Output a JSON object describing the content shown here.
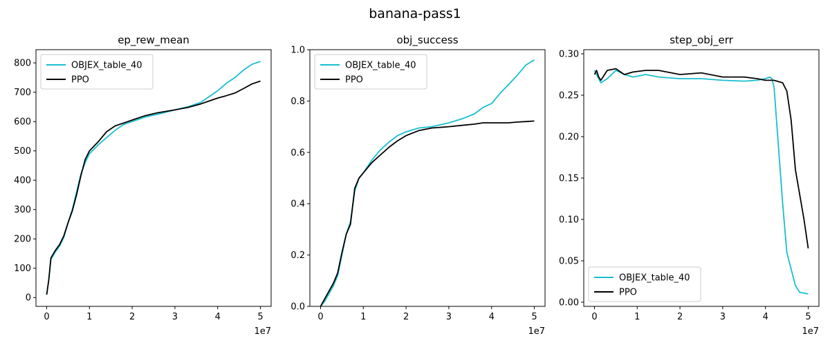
{
  "figure_title": "banana-pass1",
  "colors": {
    "objex": "#17becf",
    "ppo": "#000000"
  },
  "chart_data": [
    {
      "type": "line",
      "title": "ep_rew_mean",
      "xlabel": "",
      "ylabel": "",
      "x_offset_label": "1e7",
      "xlim": [
        -0.25,
        5.25
      ],
      "ylim": [
        -30,
        845
      ],
      "xticks": [
        0,
        1,
        2,
        3,
        4,
        5
      ],
      "xtick_labels": [
        "0",
        "1",
        "2",
        "3",
        "4",
        "5"
      ],
      "yticks": [
        0,
        100,
        200,
        300,
        400,
        500,
        600,
        700,
        800
      ],
      "ytick_labels": [
        "0",
        "100",
        "200",
        "300",
        "400",
        "500",
        "600",
        "700",
        "800"
      ],
      "legend": "upper-left",
      "grid": false,
      "series": [
        {
          "name": "OBJEX_table_40",
          "color": "#17becf",
          "x": [
            0,
            0.05,
            0.1,
            0.2,
            0.3,
            0.4,
            0.5,
            0.6,
            0.7,
            0.8,
            0.9,
            1.0,
            1.2,
            1.4,
            1.6,
            1.8,
            2.0,
            2.3,
            2.6,
            3.0,
            3.3,
            3.6,
            3.8,
            4.0,
            4.2,
            4.4,
            4.6,
            4.8,
            5.0
          ],
          "y": [
            10,
            60,
            130,
            155,
            175,
            205,
            255,
            300,
            360,
            420,
            460,
            490,
            520,
            545,
            570,
            590,
            600,
            615,
            625,
            640,
            650,
            665,
            685,
            705,
            730,
            750,
            775,
            795,
            805
          ]
        },
        {
          "name": "PPO",
          "color": "#000000",
          "x": [
            0,
            0.05,
            0.1,
            0.2,
            0.3,
            0.4,
            0.5,
            0.6,
            0.7,
            0.8,
            0.9,
            1.0,
            1.2,
            1.4,
            1.6,
            1.8,
            2.0,
            2.3,
            2.6,
            3.0,
            3.3,
            3.6,
            3.8,
            4.0,
            4.2,
            4.4,
            4.6,
            4.8,
            5.0
          ],
          "y": [
            10,
            60,
            135,
            160,
            180,
            210,
            255,
            295,
            350,
            415,
            470,
            500,
            530,
            565,
            585,
            595,
            605,
            620,
            630,
            640,
            648,
            660,
            670,
            680,
            688,
            697,
            712,
            728,
            738
          ]
        }
      ]
    },
    {
      "type": "line",
      "title": "obj_success",
      "xlabel": "",
      "ylabel": "",
      "x_offset_label": "1e7",
      "xlim": [
        -0.25,
        5.25
      ],
      "ylim": [
        0.0,
        1.0
      ],
      "xticks": [
        0,
        1,
        2,
        3,
        4,
        5
      ],
      "xtick_labels": [
        "0",
        "1",
        "2",
        "3",
        "4",
        "5"
      ],
      "yticks": [
        0.0,
        0.2,
        0.4,
        0.6,
        0.8,
        1.0
      ],
      "ytick_labels": [
        "0.0",
        "0.2",
        "0.4",
        "0.6",
        "0.8",
        "1.0"
      ],
      "legend": "upper-left",
      "grid": false,
      "series": [
        {
          "name": "OBJEX_table_40",
          "color": "#17becf",
          "x": [
            0,
            0.1,
            0.2,
            0.3,
            0.4,
            0.5,
            0.6,
            0.7,
            0.8,
            0.9,
            1.0,
            1.2,
            1.4,
            1.6,
            1.8,
            2.0,
            2.3,
            2.6,
            3.0,
            3.3,
            3.6,
            3.8,
            4.0,
            4.2,
            4.4,
            4.6,
            4.8,
            5.0
          ],
          "y": [
            0.0,
            0.02,
            0.05,
            0.08,
            0.12,
            0.2,
            0.28,
            0.33,
            0.45,
            0.5,
            0.52,
            0.57,
            0.61,
            0.64,
            0.665,
            0.68,
            0.695,
            0.7,
            0.715,
            0.73,
            0.75,
            0.775,
            0.79,
            0.83,
            0.865,
            0.9,
            0.94,
            0.96
          ]
        },
        {
          "name": "PPO",
          "color": "#000000",
          "x": [
            0,
            0.1,
            0.2,
            0.3,
            0.4,
            0.5,
            0.6,
            0.7,
            0.8,
            0.9,
            1.0,
            1.2,
            1.4,
            1.6,
            1.8,
            2.0,
            2.3,
            2.6,
            3.0,
            3.3,
            3.6,
            3.8,
            4.0,
            4.2,
            4.4,
            4.6,
            4.8,
            5.0
          ],
          "y": [
            0.0,
            0.03,
            0.06,
            0.09,
            0.13,
            0.21,
            0.28,
            0.32,
            0.46,
            0.5,
            0.52,
            0.56,
            0.59,
            0.62,
            0.645,
            0.665,
            0.685,
            0.695,
            0.7,
            0.705,
            0.71,
            0.715,
            0.715,
            0.715,
            0.715,
            0.718,
            0.72,
            0.722
          ]
        }
      ]
    },
    {
      "type": "line",
      "title": "step_obj_err",
      "xlabel": "",
      "ylabel": "",
      "x_offset_label": "1e7",
      "xlim": [
        -0.25,
        5.25
      ],
      "ylim": [
        -0.005,
        0.305
      ],
      "xticks": [
        0,
        1,
        2,
        3,
        4,
        5
      ],
      "xtick_labels": [
        "0",
        "1",
        "2",
        "3",
        "4",
        "5"
      ],
      "yticks": [
        0.0,
        0.05,
        0.1,
        0.15,
        0.2,
        0.25,
        0.3
      ],
      "ytick_labels": [
        "0.00",
        "0.05",
        "0.10",
        "0.15",
        "0.20",
        "0.25",
        "0.30"
      ],
      "legend": "lower-left",
      "grid": false,
      "series": [
        {
          "name": "OBJEX_table_40",
          "color": "#17becf",
          "x": [
            0,
            0.05,
            0.1,
            0.15,
            0.3,
            0.5,
            0.7,
            0.9,
            1.2,
            1.5,
            2.0,
            2.5,
            3.0,
            3.5,
            3.8,
            4.0,
            4.1,
            4.15,
            4.2,
            4.3,
            4.4,
            4.5,
            4.6,
            4.7,
            4.8,
            5.0
          ],
          "y": [
            0.28,
            0.275,
            0.27,
            0.265,
            0.27,
            0.28,
            0.275,
            0.272,
            0.275,
            0.272,
            0.27,
            0.27,
            0.268,
            0.267,
            0.268,
            0.27,
            0.272,
            0.27,
            0.26,
            0.19,
            0.12,
            0.06,
            0.04,
            0.02,
            0.012,
            0.01
          ]
        },
        {
          "name": "PPO",
          "color": "#000000",
          "x": [
            0,
            0.05,
            0.1,
            0.15,
            0.3,
            0.5,
            0.7,
            0.9,
            1.2,
            1.5,
            2.0,
            2.5,
            3.0,
            3.5,
            3.8,
            4.0,
            4.2,
            4.4,
            4.5,
            4.6,
            4.7,
            4.8,
            4.9,
            5.0
          ],
          "y": [
            0.275,
            0.28,
            0.272,
            0.268,
            0.28,
            0.282,
            0.275,
            0.278,
            0.28,
            0.28,
            0.275,
            0.277,
            0.272,
            0.272,
            0.27,
            0.268,
            0.268,
            0.265,
            0.255,
            0.22,
            0.16,
            0.13,
            0.1,
            0.065
          ]
        }
      ]
    }
  ]
}
